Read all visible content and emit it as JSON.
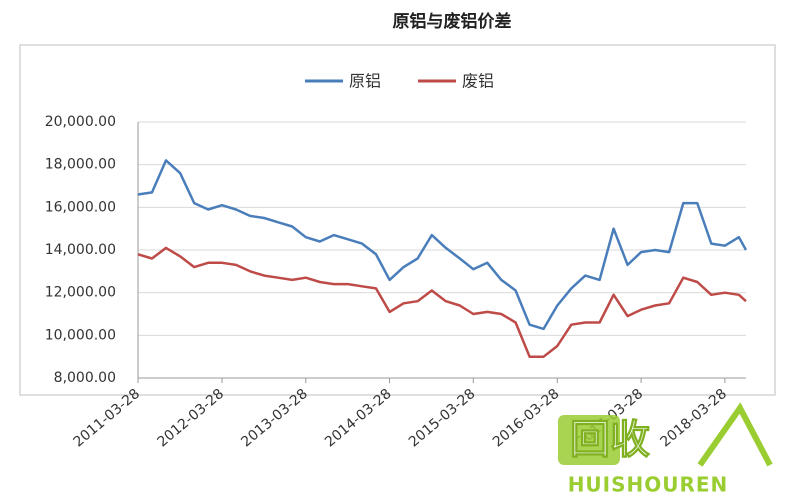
{
  "chart_data": {
    "type": "line",
    "title": "原铝与废铝价差",
    "x": [
      "2011-03-28",
      "2011-05-28",
      "2011-07-28",
      "2011-09-28",
      "2011-11-28",
      "2012-01-28",
      "2012-03-28",
      "2012-05-28",
      "2012-07-28",
      "2012-09-28",
      "2012-11-28",
      "2013-01-28",
      "2013-03-28",
      "2013-05-28",
      "2013-07-28",
      "2013-09-28",
      "2013-11-28",
      "2014-01-28",
      "2014-03-28",
      "2014-05-28",
      "2014-07-28",
      "2014-09-28",
      "2014-11-28",
      "2015-01-28",
      "2015-03-28",
      "2015-05-28",
      "2015-07-28",
      "2015-09-28",
      "2015-11-28",
      "2016-01-28",
      "2016-03-28",
      "2016-05-28",
      "2016-07-28",
      "2016-09-28",
      "2016-11-28",
      "2017-01-28",
      "2017-03-28",
      "2017-05-28",
      "2017-07-28",
      "2017-09-28",
      "2017-11-28",
      "2018-01-28",
      "2018-03-28",
      "2018-05-28",
      "2018-06-28"
    ],
    "series": [
      {
        "name": "原铝",
        "color": "#4a7ebb",
        "values": [
          16600,
          16700,
          18200,
          17600,
          16200,
          15900,
          16100,
          15900,
          15600,
          15500,
          15300,
          15100,
          14600,
          14400,
          14700,
          14500,
          14300,
          13800,
          12600,
          13200,
          13600,
          14700,
          14100,
          13600,
          13100,
          13400,
          12600,
          12100,
          10500,
          10300,
          11400,
          12200,
          12800,
          12600,
          15000,
          13300,
          13900,
          14000,
          13900,
          16200,
          16200,
          14300,
          14200,
          14600,
          14000
        ]
      },
      {
        "name": "废铝",
        "color": "#be4b48",
        "values": [
          13800,
          13600,
          14100,
          13700,
          13200,
          13400,
          13400,
          13300,
          13000,
          12800,
          12700,
          12600,
          12700,
          12500,
          12400,
          12400,
          12300,
          12200,
          11100,
          11500,
          11600,
          12100,
          11600,
          11400,
          11000,
          11100,
          11000,
          10600,
          9000,
          9000,
          9500,
          10500,
          10600,
          10600,
          11900,
          10900,
          11200,
          11400,
          11500,
          12700,
          12500,
          11900,
          12000,
          11900,
          11600
        ]
      }
    ],
    "xlim": [
      "2011-03-28",
      "2018-06-28"
    ],
    "xticks": [
      "2011-03-28",
      "2012-03-28",
      "2013-03-28",
      "2014-03-28",
      "2015-03-28",
      "2016-03-28",
      "2017-03-28",
      "2018-03-28"
    ],
    "ylim": [
      8000,
      20000
    ],
    "yticks": [
      {
        "value": 8000,
        "label": "8,000.00"
      },
      {
        "value": 10000,
        "label": "10,000.00"
      },
      {
        "value": 12000,
        "label": "12,000.00"
      },
      {
        "value": 14000,
        "label": "14,000.00"
      },
      {
        "value": 16000,
        "label": "16,000.00"
      },
      {
        "value": 18000,
        "label": "18,000.00"
      },
      {
        "value": 20000,
        "label": "20,000.00"
      }
    ],
    "grid": true,
    "legend": "top"
  },
  "watermark": {
    "mark": "回收",
    "brand": "HUISHOUREN"
  }
}
